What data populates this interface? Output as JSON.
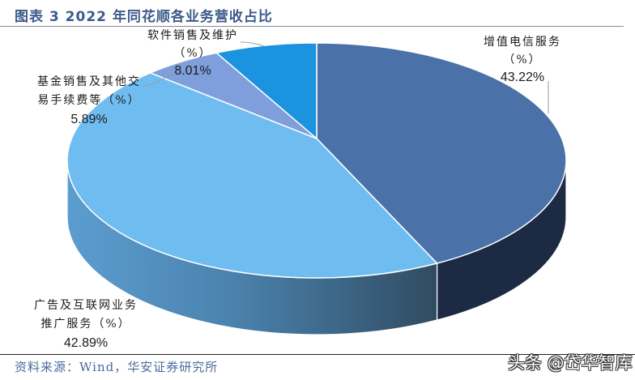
{
  "header": {
    "title": "图表 3 2022 年同花顺各业务营收占比"
  },
  "footer": {
    "source": "资料来源：Wind，华安证券研究所",
    "watermark": "头条 @岱华智库"
  },
  "labels": {
    "telecom": {
      "line1": "增值电信服务",
      "line2": "（%）",
      "value": "43.22%"
    },
    "software": {
      "line1": "软件销售及维护",
      "line2": "（%）",
      "value": "8.01%"
    },
    "fund": {
      "line1": "基金销售及其他交",
      "line2": "易手续费等（%）",
      "value": "5.89%"
    },
    "ads": {
      "line1": "广告及互联网业务",
      "line2": "推广服务（%）",
      "value": "42.89%"
    }
  },
  "chart_data": {
    "type": "pie",
    "title": "图表 3 2022 年同花顺各业务营收占比",
    "style": "3d-pie",
    "categories": [
      "增值电信服务（%）",
      "广告及互联网业务推广服务（%）",
      "基金销售及其他交易手续费等（%）",
      "软件销售及维护（%）"
    ],
    "values": [
      43.22,
      42.89,
      5.89,
      8.01
    ],
    "unit": "%",
    "colors": {
      "top": [
        "#4a71a8",
        "#6fbdf0",
        "#7e9fdb",
        "#1c93de"
      ],
      "side": [
        "#1c2b43",
        "#4d86b4",
        "#5f7fb8",
        "#176fab"
      ]
    },
    "start_angle": 0,
    "direction": "clockwise",
    "legend": "none",
    "data_labels": "category-and-value"
  }
}
